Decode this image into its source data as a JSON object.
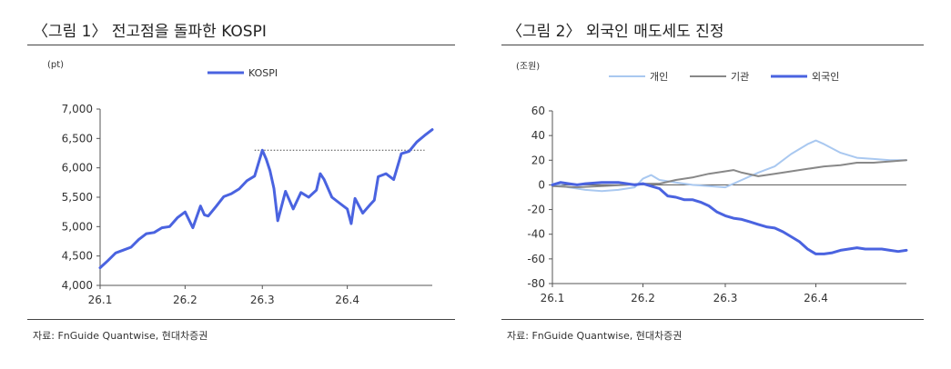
{
  "figures": [
    {
      "title": "〈그림 1〉 전고점을 돌파한 KOSPI",
      "source": "자료: FnGuide Quantwise, 현대차증권"
    },
    {
      "title": "〈그림 2〉 외국인 매도세도 진정",
      "source": "자료: FnGuide Quantwise, 현대차증권"
    }
  ],
  "chart_data": [
    {
      "type": "line",
      "title": "",
      "unit_label": "(pt)",
      "xlabel": "",
      "ylabel": "",
      "xlim": [
        0,
        86
      ],
      "ylim": [
        4000,
        7000
      ],
      "yticks": [
        4000,
        4500,
        5000,
        5500,
        6000,
        6500,
        7000
      ],
      "ytick_labels": [
        "4,000",
        "4,500",
        "5,000",
        "5,500",
        "6,000",
        "6,500",
        "7,000"
      ],
      "xticks": [
        0,
        22,
        42,
        64
      ],
      "xtick_labels": [
        "26.1",
        "26.2",
        "26.3",
        "26.4"
      ],
      "grid": false,
      "legend": "top-center",
      "reference_line": {
        "value": 6300,
        "x_from": 40,
        "x_to": 84,
        "style": "dotted"
      },
      "series": [
        {
          "name": "KOSPI",
          "color": "#4a63e0",
          "x": [
            0,
            2,
            4,
            6,
            8,
            10,
            12,
            14,
            16,
            18,
            20,
            22,
            24,
            26,
            27,
            28,
            30,
            32,
            34,
            36,
            38,
            40,
            42,
            43,
            44,
            45,
            46,
            48,
            49,
            50,
            52,
            54,
            56,
            57,
            58,
            60,
            62,
            64,
            65,
            66,
            68,
            70,
            71,
            72,
            74,
            76,
            78,
            80,
            82,
            84,
            86
          ],
          "y": [
            4300,
            4420,
            4550,
            4600,
            4650,
            4780,
            4880,
            4900,
            4980,
            5000,
            5150,
            5250,
            4980,
            5350,
            5200,
            5180,
            5340,
            5510,
            5560,
            5640,
            5780,
            5860,
            6300,
            6150,
            5950,
            5650,
            5100,
            5600,
            5450,
            5300,
            5580,
            5500,
            5620,
            5900,
            5800,
            5500,
            5400,
            5300,
            5050,
            5480,
            5230,
            5380,
            5450,
            5850,
            5900,
            5800,
            6240,
            6280,
            6440,
            6550,
            6650
          ]
        }
      ]
    },
    {
      "type": "line",
      "title": "",
      "unit_label": "(조원)",
      "xlabel": "",
      "ylabel": "",
      "xlim": [
        0,
        86
      ],
      "ylim": [
        -80,
        60
      ],
      "yticks": [
        -80,
        -60,
        -40,
        -20,
        0,
        20,
        40,
        60
      ],
      "xticks": [
        0,
        22,
        42,
        64
      ],
      "xtick_labels": [
        "26.1",
        "26.2",
        "26.3",
        "26.4"
      ],
      "grid": false,
      "legend": "top-center",
      "series": [
        {
          "name": "개인",
          "color": "#a9c8f0",
          "x": [
            0,
            4,
            8,
            12,
            16,
            20,
            22,
            24,
            26,
            30,
            34,
            38,
            42,
            46,
            50,
            54,
            58,
            62,
            64,
            66,
            70,
            74,
            78,
            82,
            86
          ],
          "y": [
            1,
            -2,
            -4,
            -5,
            -4,
            -2,
            5,
            8,
            4,
            2,
            0,
            -1,
            -2,
            4,
            10,
            15,
            25,
            33,
            36,
            33,
            26,
            22,
            21,
            20,
            20
          ]
        },
        {
          "name": "기관",
          "color": "#888888",
          "x": [
            0,
            6,
            12,
            18,
            22,
            26,
            30,
            34,
            38,
            42,
            44,
            46,
            50,
            54,
            58,
            62,
            66,
            70,
            74,
            78,
            82,
            86
          ],
          "y": [
            -1,
            -2,
            -1,
            0,
            1,
            1,
            4,
            6,
            9,
            11,
            12,
            10,
            7,
            9,
            11,
            13,
            15,
            16,
            18,
            18,
            19,
            20
          ]
        },
        {
          "name": "외국인",
          "color": "#4a63e0",
          "x": [
            0,
            2,
            4,
            6,
            8,
            12,
            16,
            20,
            22,
            24,
            26,
            28,
            30,
            32,
            34,
            36,
            38,
            40,
            42,
            44,
            46,
            48,
            50,
            52,
            54,
            56,
            58,
            60,
            62,
            64,
            66,
            68,
            70,
            72,
            74,
            76,
            78,
            80,
            82,
            84,
            86
          ],
          "y": [
            0,
            2,
            1,
            0,
            1,
            2,
            2,
            0,
            1,
            -1,
            -3,
            -9,
            -10,
            -12,
            -12,
            -14,
            -17,
            -22,
            -25,
            -27,
            -28,
            -30,
            -32,
            -34,
            -35,
            -38,
            -42,
            -46,
            -52,
            -56,
            -56,
            -55,
            -53,
            -52,
            -51,
            -52,
            -52,
            -52,
            -53,
            -54,
            -53
          ]
        }
      ]
    }
  ]
}
